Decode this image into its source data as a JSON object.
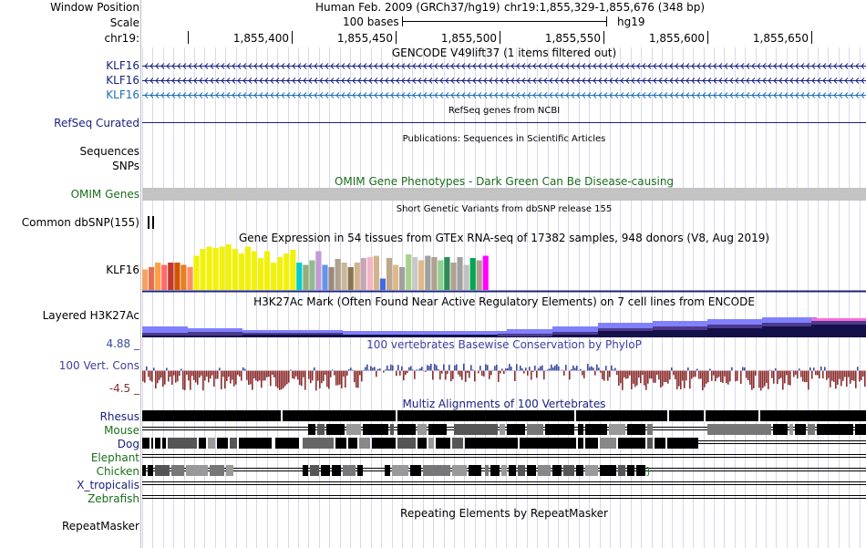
{
  "header": {
    "window_position_label": "Window Position",
    "scale_label": "Scale",
    "chrom_label": "chr19:",
    "assembly": "Human Feb. 2009 (GRCh37/hg19)",
    "position": "chr19:1,855,329-1,855,676 (348 bp)",
    "scale_bar_text": "100 bases",
    "db": "hg19",
    "ticks": [
      "1,855,400",
      "1,855,450",
      "1,855,500",
      "1,855,550",
      "1,855,600",
      "1,855,650"
    ]
  },
  "gencode": {
    "title": "GENCODE V49lift37 (1 items filtered out)",
    "rows": [
      {
        "name": "KLF16",
        "color": "#1a237e"
      },
      {
        "name": "KLF16",
        "color": "#1a237e"
      },
      {
        "name": "KLF16",
        "color": "#1f6fb5"
      }
    ]
  },
  "refseq": {
    "label": "RefSeq Curated",
    "title": "RefSeq genes from NCBI",
    "color": "#1a237e"
  },
  "pubs": {
    "label1": "Sequences",
    "label2": "SNPs",
    "title": "Publications: Sequences in Scientific Articles"
  },
  "omim": {
    "label": "OMIM Genes",
    "title": "OMIM Gene Phenotypes - Dark Green Can Be Disease-causing",
    "color": "#1b6e1b"
  },
  "dbsnp": {
    "label": "Common dbSNP(155)",
    "title": "Short Genetic Variants from dbSNP release 155"
  },
  "gtex": {
    "label": "KLF16",
    "title": "Gene Expression in 54 tissues from GTEx RNA-seq of 17382 samples, 948 donors (V8, Aug 2019)",
    "values": [
      0.45,
      0.5,
      0.6,
      0.55,
      0.6,
      0.6,
      0.55,
      0.5,
      0.75,
      0.9,
      0.95,
      0.92,
      0.95,
      1.0,
      0.9,
      0.8,
      0.95,
      0.85,
      0.7,
      0.85,
      0.6,
      0.72,
      0.8,
      0.88,
      0.6,
      0.55,
      0.65,
      0.85,
      0.55,
      0.5,
      0.68,
      0.6,
      0.5,
      0.6,
      0.7,
      0.72,
      0.75,
      0.25,
      0.7,
      0.55,
      0.5,
      0.78,
      0.72,
      0.65,
      0.75,
      0.72,
      0.65,
      0.72,
      0.6,
      0.72,
      0.55,
      0.7,
      0.65,
      0.75
    ],
    "colors": [
      "#f4a261",
      "#e76f51",
      "#ff9f43",
      "#ff6b6b",
      "#c0392b",
      "#d35400",
      "#e67e22",
      "#ff8c69",
      "#f1f10c",
      "#f1f10c",
      "#f1f10c",
      "#f1f10c",
      "#f1f10c",
      "#f1f10c",
      "#f1f10c",
      "#f1f10c",
      "#f1f10c",
      "#f1f10c",
      "#f1f10c",
      "#f1f10c",
      "#f1f10c",
      "#f1f10c",
      "#f1f10c",
      "#f1f10c",
      "#00cccc",
      "#9aaa7a",
      "#8fbc8f",
      "#c39bd3",
      "#6495ed",
      "#9a8878",
      "#b0a090",
      "#c8b89a",
      "#8b7355",
      "#d2b48c",
      "#c9a6b7",
      "#f4b6c2",
      "#d2b48c",
      "#4169e1",
      "#bca68c",
      "#deb887",
      "#a0a0a0",
      "#a9d18e",
      "#c8c8c8",
      "#deb887",
      "#a0a0a0",
      "#b0a090",
      "#8fd18f",
      "#2e8b57",
      "#b0a090",
      "#a0a0a0",
      "#c0c0c0",
      "#00a651",
      "#b09c8c",
      "#ff00ff"
    ]
  },
  "h3k27ac": {
    "label": "Layered H3K27Ac",
    "title": "H3K27Ac Mark (Often Found Near Active Regulatory Elements) on 7 cell lines from ENCODE"
  },
  "phylop": {
    "max_label": "4.88 _",
    "name_label": "100 Vert. Cons",
    "min_label": "-4.5 _",
    "title": "100 vertebrates Basewise Conservation by PhyloP",
    "label_color": "#3f3f9f",
    "pos_color": "#3b4a9e",
    "neg_color": "#8b2e2e"
  },
  "multiz": {
    "title": "Multiz Alignments of 100 Vertebrates",
    "species": [
      {
        "name": "Rhesus",
        "color": "#1a237e"
      },
      {
        "name": "Mouse",
        "color": "#1b6e1b"
      },
      {
        "name": "Dog",
        "color": "#1a237e"
      },
      {
        "name": "Elephant",
        "color": "#1b6e1b"
      },
      {
        "name": "Chicken",
        "color": "#1b6e1b"
      },
      {
        "name": "X_tropicalis",
        "color": "#1a237e"
      },
      {
        "name": "Zebrafish",
        "color": "#1b6e1b"
      }
    ]
  },
  "repeatmasker": {
    "label": "RepeatMasker",
    "title": "Repeating Elements by RepeatMasker"
  }
}
